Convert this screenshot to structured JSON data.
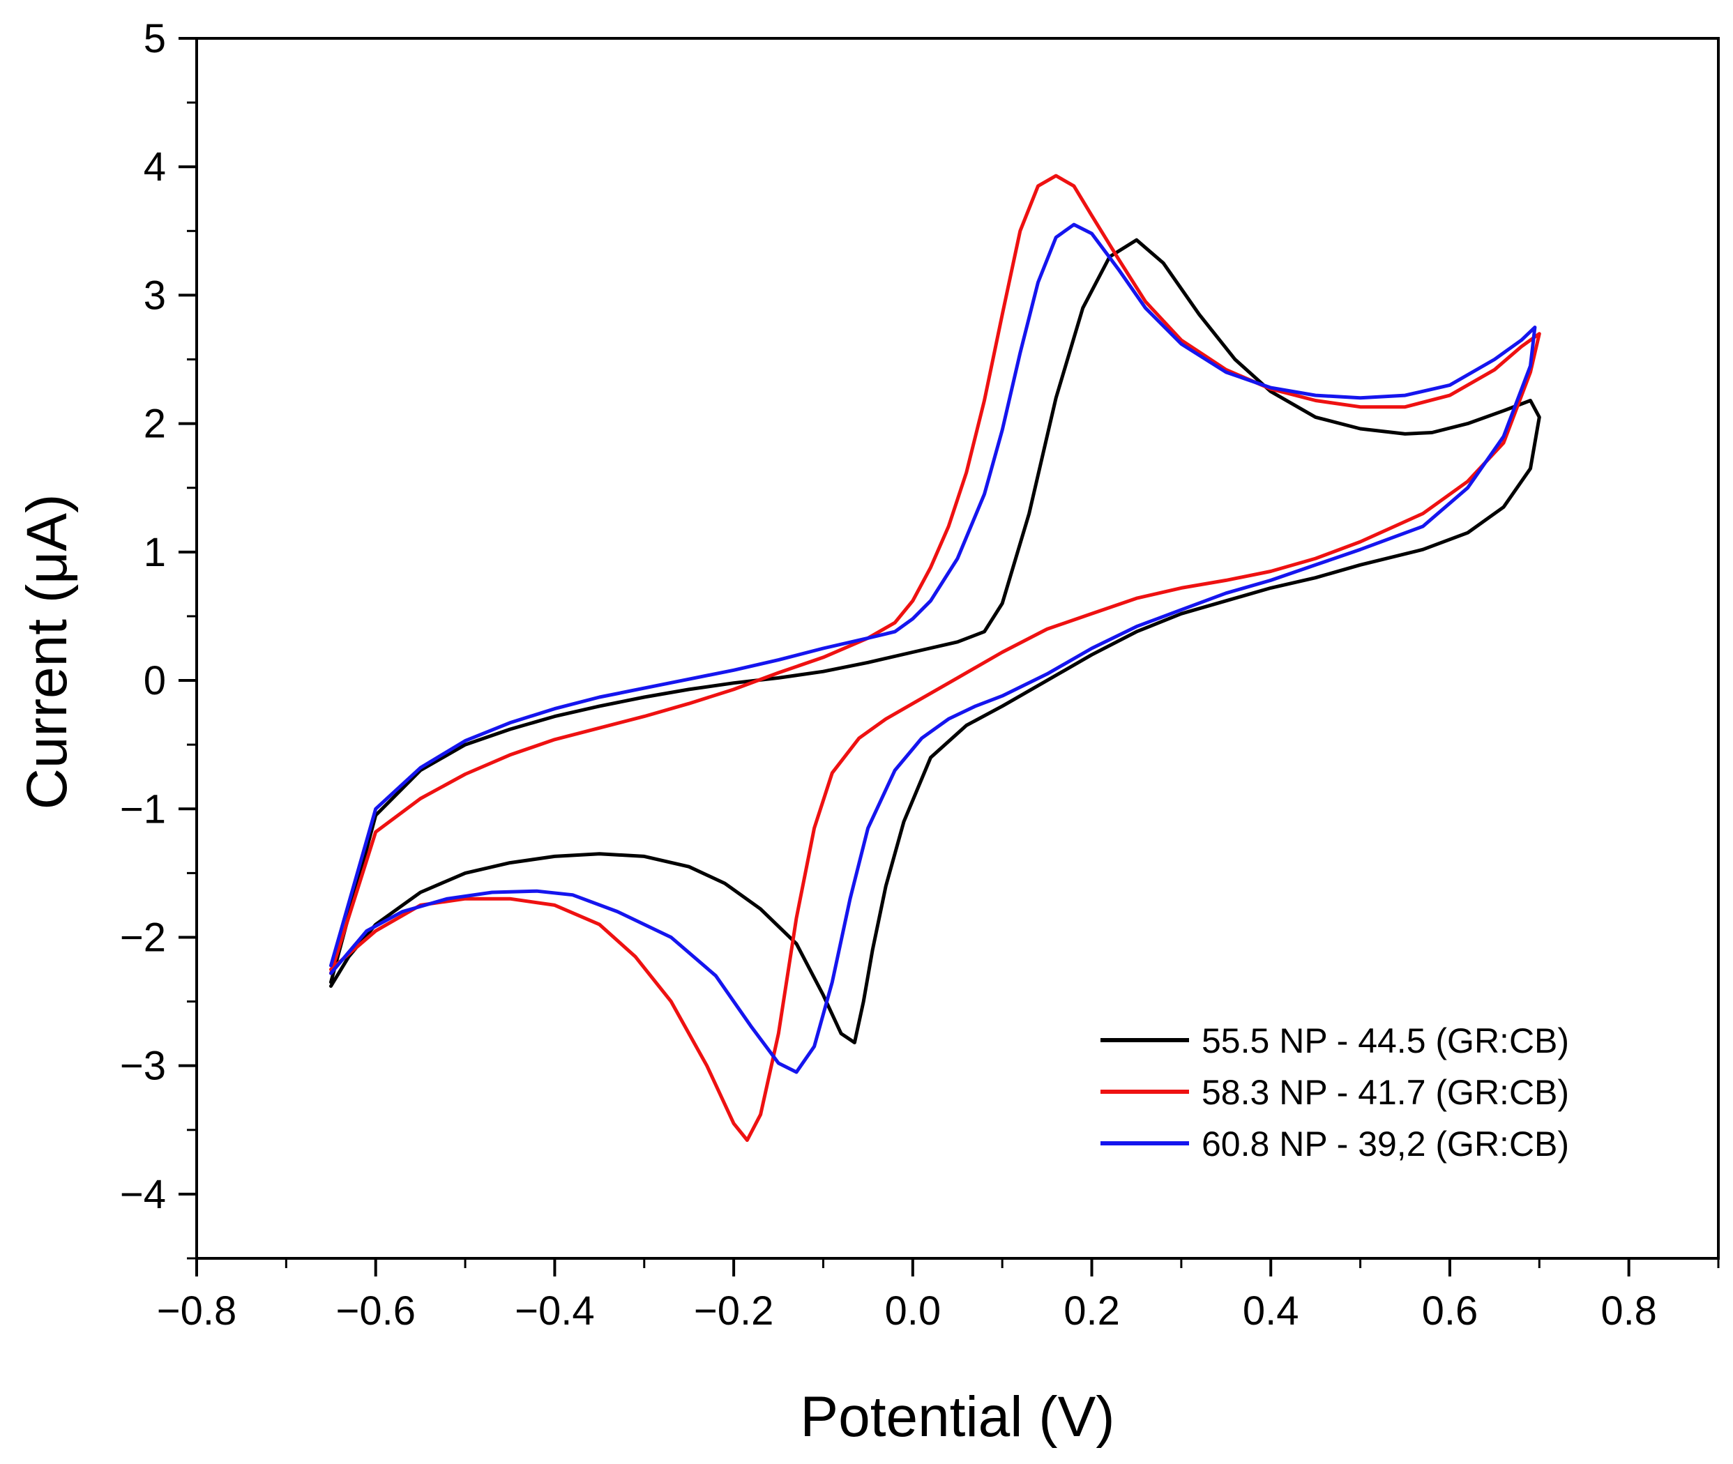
{
  "chart_data": {
    "type": "line",
    "title": "",
    "xlabel": "Potential (V)",
    "ylabel": "Current (μA)",
    "xlim": [
      -0.8,
      0.9
    ],
    "ylim": [
      -4.5,
      5
    ],
    "xticks": [
      -0.8,
      -0.6,
      -0.4,
      -0.2,
      0.0,
      0.2,
      0.4,
      0.6,
      0.8
    ],
    "xtick_labels": [
      "−0.8",
      "−0.6",
      "−0.4",
      "−0.2",
      "0.0",
      "0.2",
      "0.4",
      "0.6",
      "0.8"
    ],
    "yticks": [
      -4,
      -3,
      -2,
      -1,
      0,
      1,
      2,
      3,
      4,
      5
    ],
    "ytick_labels": [
      "−4",
      "−3",
      "−2",
      "−1",
      "0",
      "1",
      "2",
      "3",
      "4",
      "5"
    ],
    "grid": false,
    "legend_position": "bottom-right",
    "series": [
      {
        "name": "55.5 NP - 44.5 (GR:CB)",
        "color": "#000000",
        "x": [
          -0.65,
          -0.6,
          -0.55,
          -0.5,
          -0.45,
          -0.4,
          -0.35,
          -0.3,
          -0.25,
          -0.2,
          -0.15,
          -0.1,
          -0.05,
          0.0,
          0.05,
          0.08,
          0.1,
          0.13,
          0.16,
          0.19,
          0.22,
          0.25,
          0.28,
          0.32,
          0.36,
          0.4,
          0.45,
          0.5,
          0.55,
          0.58,
          0.62,
          0.66,
          0.69,
          0.7,
          0.69,
          0.66,
          0.62,
          0.57,
          0.5,
          0.45,
          0.4,
          0.35,
          0.3,
          0.25,
          0.2,
          0.15,
          0.1,
          0.06,
          0.02,
          -0.01,
          -0.03,
          -0.045,
          -0.055,
          -0.065,
          -0.08,
          -0.1,
          -0.13,
          -0.17,
          -0.21,
          -0.25,
          -0.3,
          -0.35,
          -0.4,
          -0.45,
          -0.5,
          -0.55,
          -0.6,
          -0.63,
          -0.65
        ],
        "y": [
          -2.35,
          -1.05,
          -0.7,
          -0.5,
          -0.38,
          -0.28,
          -0.2,
          -0.13,
          -0.07,
          -0.02,
          0.02,
          0.07,
          0.14,
          0.22,
          0.3,
          0.38,
          0.6,
          1.3,
          2.2,
          2.9,
          3.3,
          3.43,
          3.25,
          2.85,
          2.5,
          2.25,
          2.05,
          1.96,
          1.92,
          1.93,
          2.0,
          2.1,
          2.18,
          2.05,
          1.65,
          1.35,
          1.15,
          1.02,
          0.9,
          0.8,
          0.72,
          0.62,
          0.52,
          0.38,
          0.2,
          0.0,
          -0.2,
          -0.35,
          -0.6,
          -1.1,
          -1.6,
          -2.1,
          -2.5,
          -2.82,
          -2.75,
          -2.45,
          -2.05,
          -1.78,
          -1.58,
          -1.45,
          -1.37,
          -1.35,
          -1.37,
          -1.42,
          -1.5,
          -1.65,
          -1.9,
          -2.15,
          -2.38
        ]
      },
      {
        "name": "58.3 NP - 41.7 (GR:CB)",
        "color": "#ee1111",
        "x": [
          -0.65,
          -0.6,
          -0.55,
          -0.5,
          -0.45,
          -0.4,
          -0.35,
          -0.3,
          -0.25,
          -0.2,
          -0.15,
          -0.1,
          -0.05,
          -0.02,
          0.0,
          0.02,
          0.04,
          0.06,
          0.08,
          0.1,
          0.12,
          0.14,
          0.16,
          0.18,
          0.2,
          0.23,
          0.26,
          0.3,
          0.35,
          0.4,
          0.45,
          0.5,
          0.55,
          0.6,
          0.65,
          0.68,
          0.7,
          0.69,
          0.66,
          0.62,
          0.57,
          0.5,
          0.45,
          0.4,
          0.35,
          0.3,
          0.25,
          0.2,
          0.15,
          0.1,
          0.05,
          0.0,
          -0.03,
          -0.06,
          -0.09,
          -0.11,
          -0.13,
          -0.15,
          -0.17,
          -0.185,
          -0.2,
          -0.23,
          -0.27,
          -0.31,
          -0.35,
          -0.4,
          -0.45,
          -0.5,
          -0.55,
          -0.6,
          -0.65
        ],
        "y": [
          -2.28,
          -1.18,
          -0.92,
          -0.73,
          -0.58,
          -0.46,
          -0.37,
          -0.28,
          -0.18,
          -0.07,
          0.06,
          0.18,
          0.33,
          0.45,
          0.62,
          0.88,
          1.2,
          1.62,
          2.18,
          2.85,
          3.5,
          3.85,
          3.93,
          3.85,
          3.62,
          3.28,
          2.95,
          2.65,
          2.42,
          2.27,
          2.18,
          2.13,
          2.13,
          2.22,
          2.42,
          2.6,
          2.7,
          2.4,
          1.85,
          1.55,
          1.3,
          1.08,
          0.95,
          0.85,
          0.78,
          0.72,
          0.64,
          0.52,
          0.4,
          0.22,
          0.02,
          -0.18,
          -0.3,
          -0.45,
          -0.72,
          -1.15,
          -1.85,
          -2.75,
          -3.38,
          -3.58,
          -3.45,
          -3.0,
          -2.5,
          -2.15,
          -1.9,
          -1.75,
          -1.7,
          -1.7,
          -1.75,
          -1.95,
          -2.25
        ]
      },
      {
        "name": "60.8 NP - 39,2 (GR:CB)",
        "color": "#1515ee",
        "x": [
          -0.65,
          -0.6,
          -0.55,
          -0.5,
          -0.45,
          -0.4,
          -0.35,
          -0.3,
          -0.25,
          -0.2,
          -0.15,
          -0.1,
          -0.05,
          -0.02,
          0.0,
          0.02,
          0.05,
          0.08,
          0.1,
          0.12,
          0.14,
          0.16,
          0.18,
          0.2,
          0.23,
          0.26,
          0.3,
          0.35,
          0.4,
          0.45,
          0.5,
          0.55,
          0.6,
          0.65,
          0.68,
          0.695,
          0.69,
          0.66,
          0.62,
          0.57,
          0.5,
          0.45,
          0.4,
          0.35,
          0.3,
          0.25,
          0.2,
          0.15,
          0.1,
          0.07,
          0.04,
          0.01,
          -0.02,
          -0.05,
          -0.07,
          -0.09,
          -0.11,
          -0.13,
          -0.15,
          -0.18,
          -0.22,
          -0.27,
          -0.33,
          -0.38,
          -0.42,
          -0.47,
          -0.52,
          -0.57,
          -0.61,
          -0.65
        ],
        "y": [
          -2.22,
          -1.0,
          -0.68,
          -0.47,
          -0.33,
          -0.22,
          -0.13,
          -0.06,
          0.01,
          0.08,
          0.16,
          0.25,
          0.33,
          0.38,
          0.48,
          0.62,
          0.95,
          1.45,
          1.95,
          2.55,
          3.1,
          3.45,
          3.55,
          3.48,
          3.2,
          2.9,
          2.62,
          2.4,
          2.28,
          2.22,
          2.2,
          2.22,
          2.3,
          2.5,
          2.65,
          2.75,
          2.45,
          1.9,
          1.5,
          1.2,
          1.02,
          0.9,
          0.78,
          0.68,
          0.55,
          0.42,
          0.25,
          0.05,
          -0.12,
          -0.2,
          -0.3,
          -0.45,
          -0.7,
          -1.15,
          -1.7,
          -2.35,
          -2.85,
          -3.05,
          -2.98,
          -2.7,
          -2.3,
          -2.0,
          -1.8,
          -1.67,
          -1.64,
          -1.65,
          -1.7,
          -1.8,
          -1.95,
          -2.28
        ]
      }
    ]
  }
}
